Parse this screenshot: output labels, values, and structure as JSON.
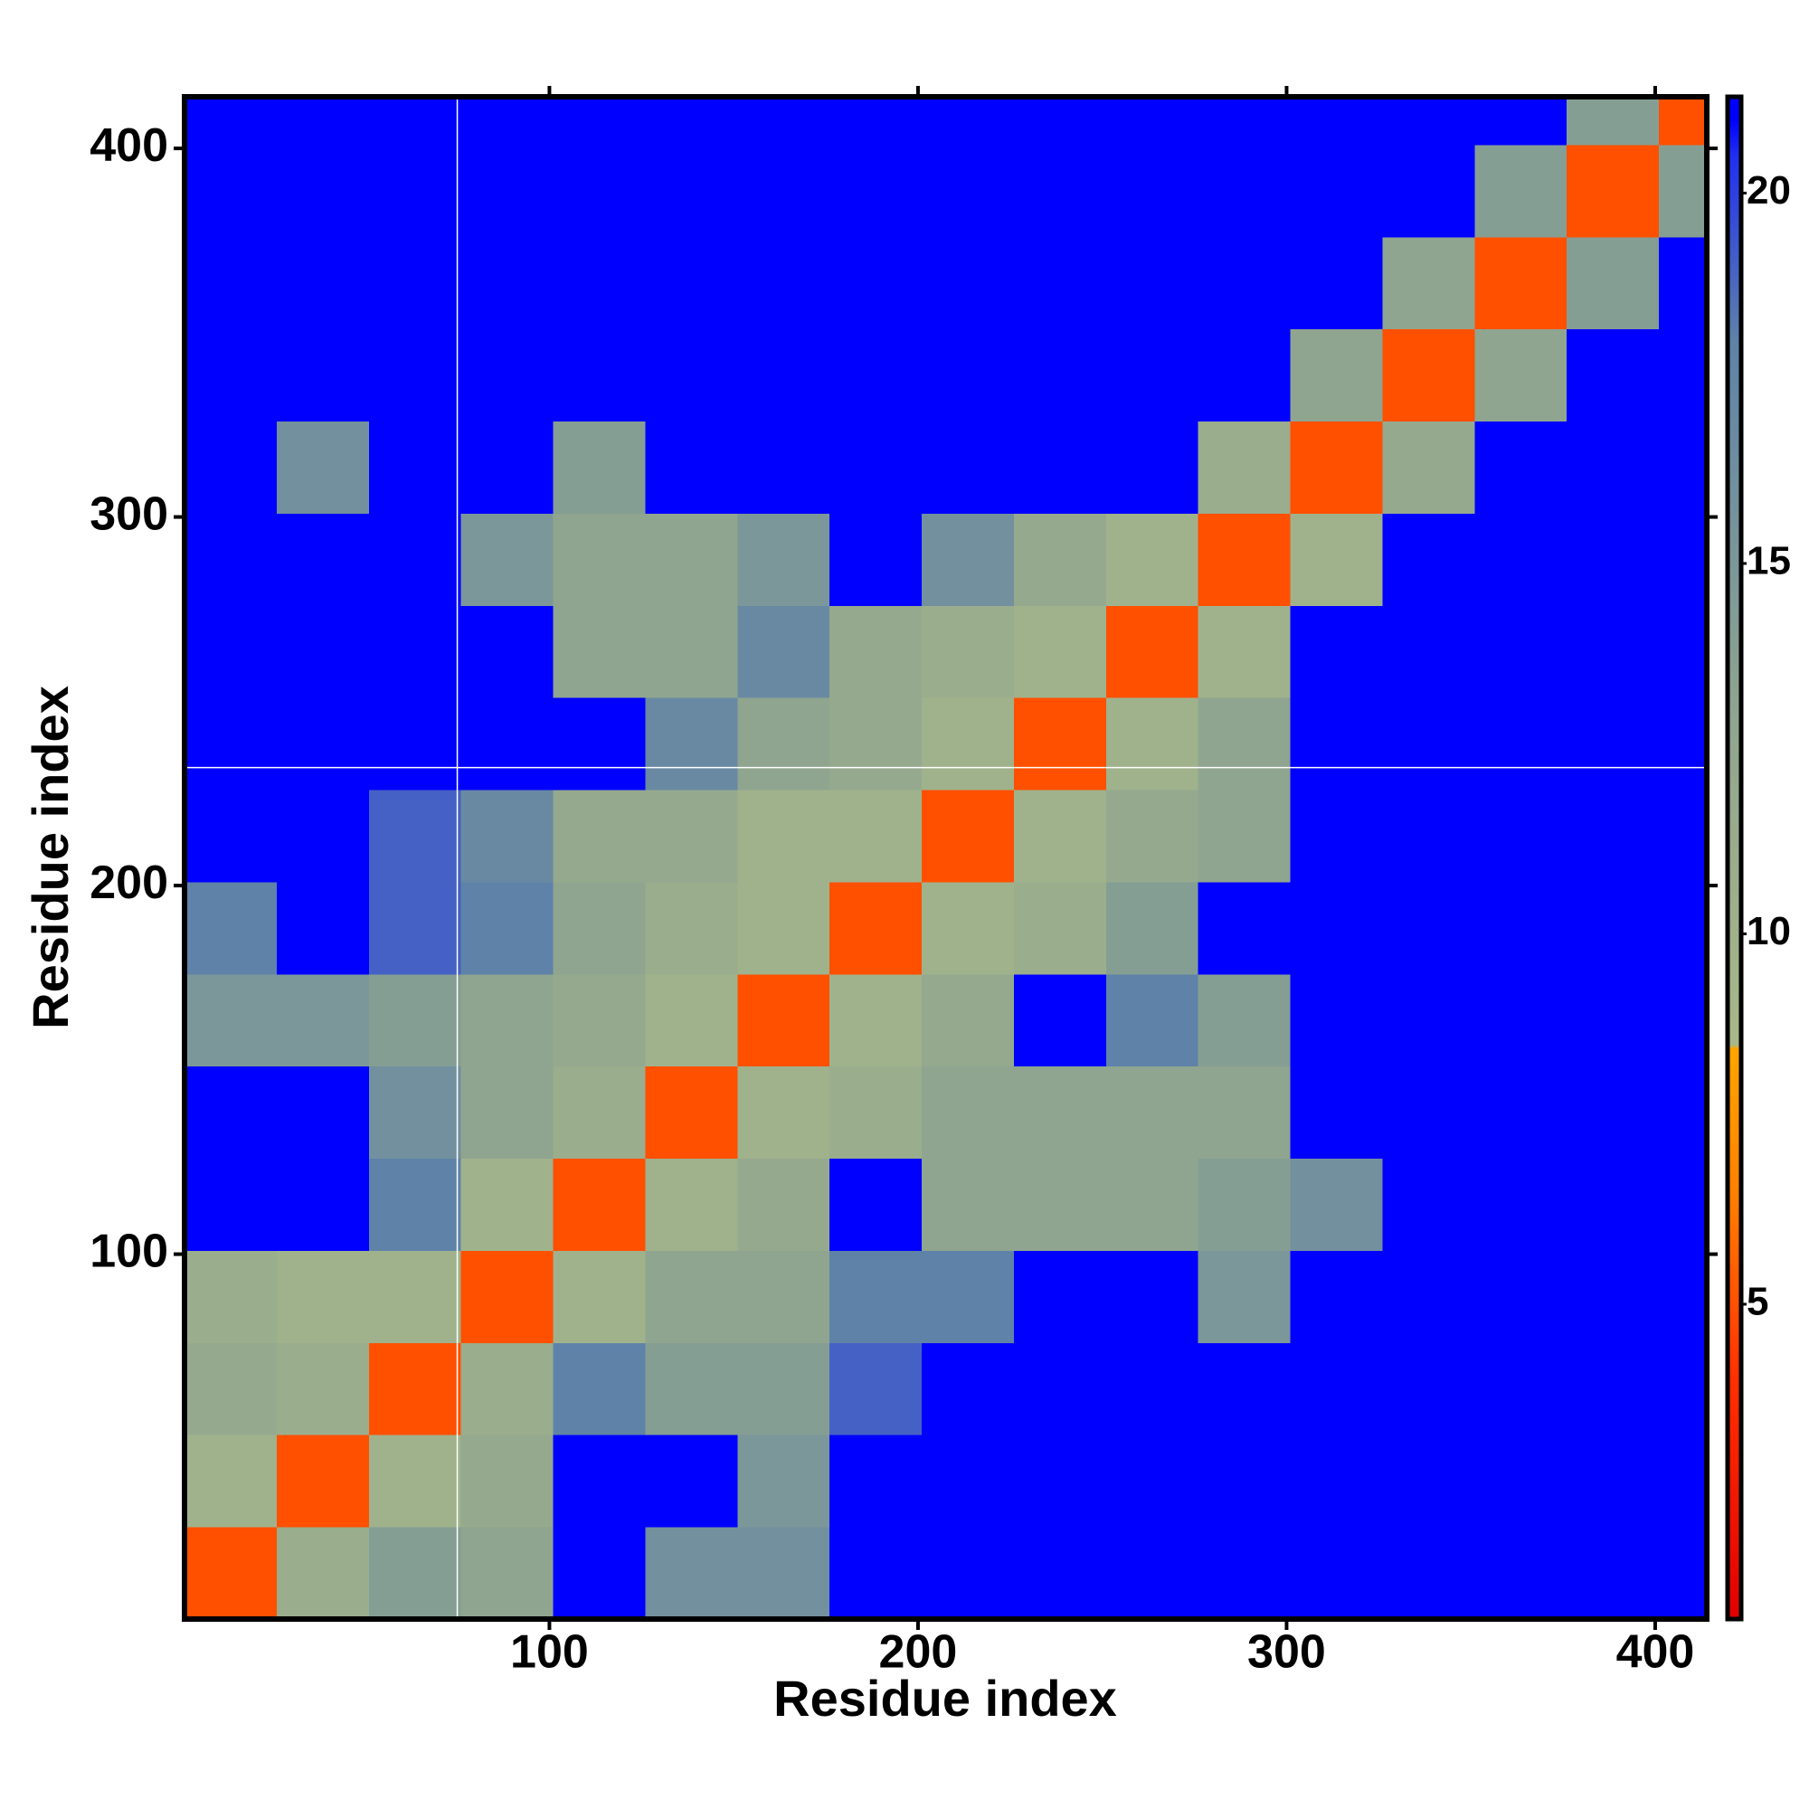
{
  "chart_data": {
    "type": "heatmap",
    "x_label": "Residue index",
    "y_label": "Residue index",
    "x_bins": [
      1,
      26,
      51,
      76,
      101,
      126,
      151,
      176,
      201,
      226,
      251,
      276,
      301,
      326,
      351,
      376,
      401,
      414
    ],
    "y_bins": [
      1,
      26,
      51,
      76,
      101,
      126,
      151,
      176,
      201,
      226,
      251,
      276,
      301,
      326,
      351,
      376,
      401,
      414
    ],
    "values": [
      [
        5,
        11,
        14,
        13,
        21,
        16,
        16,
        21,
        21,
        21,
        21,
        21,
        21,
        21,
        21,
        21,
        21
      ],
      [
        10,
        5,
        10,
        12,
        21,
        21,
        15,
        21,
        21,
        21,
        21,
        21,
        21,
        21,
        21,
        21,
        21
      ],
      [
        12,
        11,
        5,
        11,
        18,
        14,
        14,
        19,
        21,
        21,
        21,
        21,
        21,
        21,
        21,
        21,
        21
      ],
      [
        11,
        10,
        10,
        5,
        10,
        13,
        13,
        18,
        18,
        21,
        21,
        15,
        21,
        21,
        21,
        21,
        21
      ],
      [
        21,
        21,
        18,
        10,
        5,
        10,
        12,
        21,
        13,
        13,
        13,
        14,
        16,
        21,
        21,
        21,
        21
      ],
      [
        21,
        21,
        16,
        13,
        11,
        5,
        10,
        11,
        13,
        13,
        13,
        13,
        21,
        21,
        21,
        21,
        21
      ],
      [
        15,
        15,
        14,
        13,
        12,
        10,
        5,
        10,
        12,
        21,
        18,
        14,
        21,
        21,
        21,
        21,
        21
      ],
      [
        18,
        21,
        19,
        18,
        13,
        11,
        10,
        5,
        10,
        11,
        14,
        21,
        21,
        21,
        21,
        21,
        21
      ],
      [
        21,
        21,
        19,
        17,
        12,
        12,
        10,
        10,
        5,
        10,
        12,
        13,
        21,
        21,
        21,
        21,
        21
      ],
      [
        21,
        21,
        21,
        21,
        21,
        17,
        13,
        12,
        10,
        5,
        10,
        13,
        21,
        21,
        21,
        21,
        21
      ],
      [
        21,
        21,
        21,
        21,
        13,
        13,
        17,
        12,
        11,
        10,
        5,
        10,
        21,
        21,
        21,
        21,
        21
      ],
      [
        21,
        21,
        21,
        15,
        13,
        13,
        15,
        21,
        16,
        12,
        10,
        5,
        10,
        21,
        21,
        21,
        21
      ],
      [
        21,
        16,
        21,
        21,
        14,
        21,
        21,
        21,
        21,
        21,
        21,
        11,
        5,
        12,
        21,
        21,
        21
      ],
      [
        21,
        21,
        21,
        21,
        21,
        21,
        21,
        21,
        21,
        21,
        21,
        21,
        13,
        5,
        13,
        21,
        21
      ],
      [
        21,
        21,
        21,
        21,
        21,
        21,
        21,
        21,
        21,
        21,
        21,
        21,
        21,
        13,
        5,
        14,
        21
      ],
      [
        21,
        21,
        21,
        21,
        21,
        21,
        21,
        21,
        21,
        21,
        21,
        21,
        21,
        21,
        14,
        5,
        14
      ],
      [
        21,
        21,
        21,
        21,
        21,
        21,
        21,
        21,
        21,
        21,
        21,
        21,
        21,
        21,
        21,
        14,
        5
      ]
    ],
    "xlim": [
      1,
      414
    ],
    "ylim": [
      1,
      414
    ],
    "xticks": [
      100,
      200,
      300,
      400
    ],
    "yticks": [
      100,
      200,
      300,
      400
    ],
    "guide_lines": {
      "x": 75,
      "y": 232
    },
    "colorbar": {
      "lim": [
        0.75,
        21.3
      ],
      "ticks": [
        5,
        10,
        15,
        20
      ],
      "colorscale": [
        {
          "value": 0.75,
          "color": "#e00000"
        },
        {
          "value": 4,
          "color": "#ff3000"
        },
        {
          "value": 6.5,
          "color": "#ff8000"
        },
        {
          "value": 8.45,
          "color": "#ffa500"
        },
        {
          "value": 8.5,
          "color": "#a8b88a"
        },
        {
          "value": 13,
          "color": "#8fa58f"
        },
        {
          "value": 18,
          "color": "#5f82a8"
        },
        {
          "value": 20.5,
          "color": "#2030f0"
        },
        {
          "value": 21,
          "color": "#0000ff"
        }
      ]
    }
  }
}
